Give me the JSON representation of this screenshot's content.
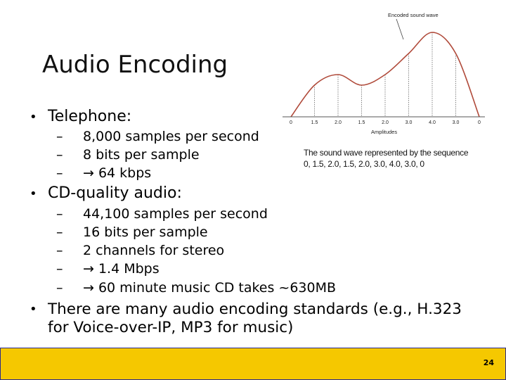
{
  "slide": {
    "title": "Audio Encoding",
    "bullets": [
      {
        "text": "Telephone:",
        "subs": [
          "8,000 samples per second",
          "8 bits per sample",
          "→ 64 kbps"
        ]
      },
      {
        "text": "CD-quality audio:",
        "subs": [
          "44,100 samples per second",
          "16 bits per sample",
          "2 channels for stereo",
          "→ 1.4 Mbps",
          "→ 60 minute music CD takes ~630MB"
        ]
      },
      {
        "text": "There are many audio encoding standards (e.g., H.323 for Voice-over-IP, MP3 for music)"
      }
    ],
    "bullet_glyph": "•",
    "dash_glyph": "–",
    "page_number": "24"
  },
  "figure": {
    "wave_label": "Encoded sound wave",
    "axis_label": "Amplitudes",
    "amplitudes": [
      "0",
      "1.5",
      "2.0",
      "1.5",
      "2.0",
      "3.0",
      "4.0",
      "3.0",
      "0"
    ],
    "caption_line1": "The sound wave represented by the sequence",
    "caption_line2": "0, 1.5, 2.0, 1.5, 2.0, 3.0, 4.0, 3.0, 0",
    "wave_color": "#b04a3a"
  },
  "theme": {
    "footer_color": "#f5c800"
  }
}
